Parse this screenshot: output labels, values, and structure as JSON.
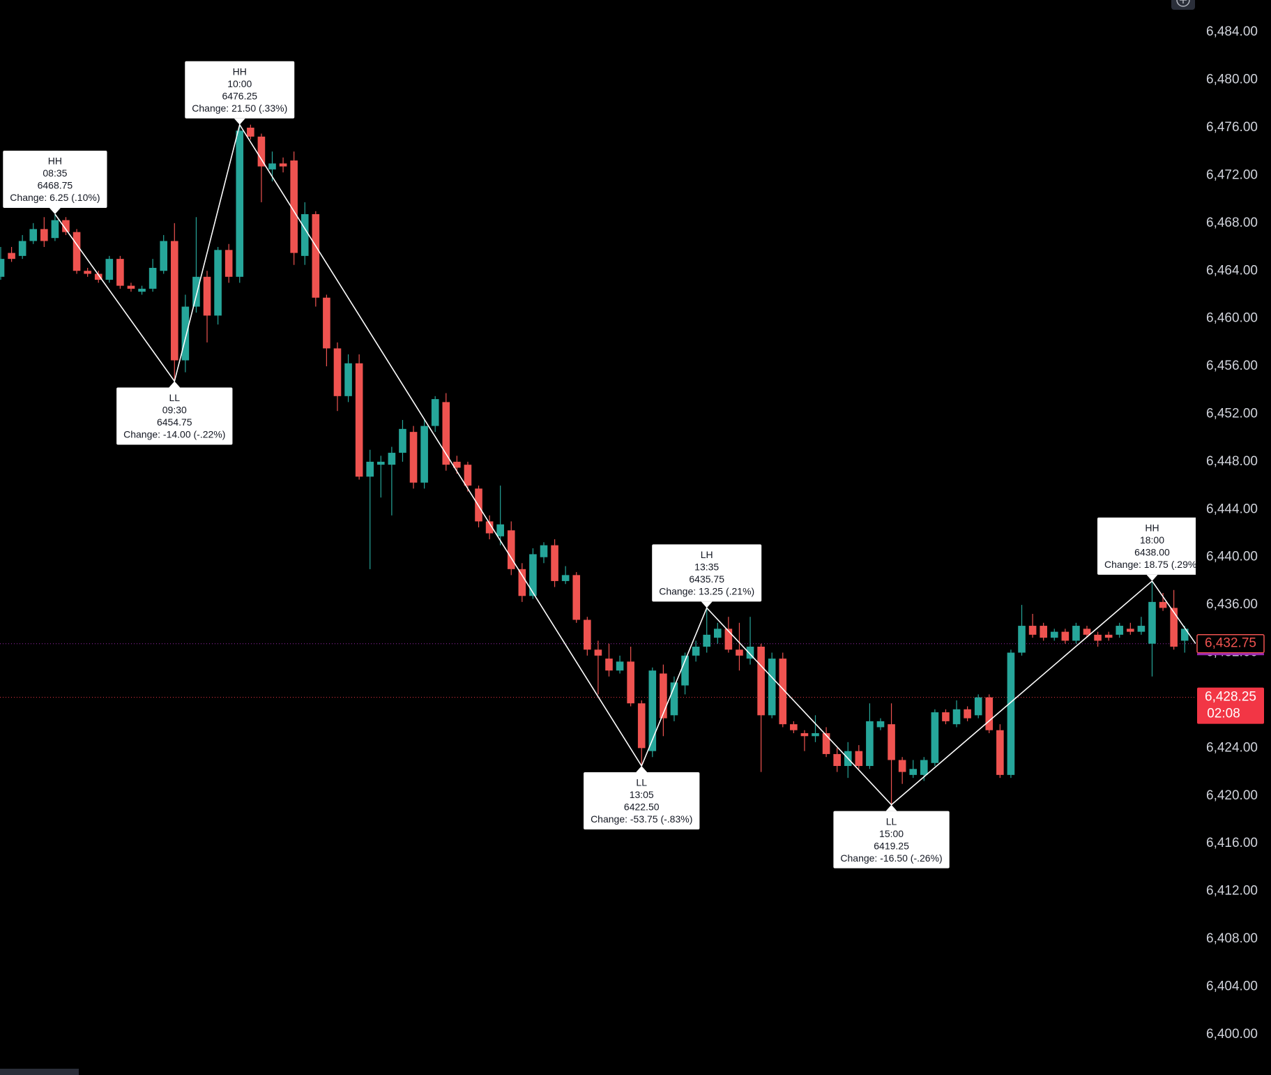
{
  "chart_data": {
    "type": "candlestick",
    "x": [
      null,
      null,
      null,
      null,
      null,
      "08:35",
      null,
      null,
      null,
      null,
      null,
      null,
      null,
      null,
      null,
      null,
      "09:30",
      null,
      null,
      null,
      null,
      null,
      "10:00",
      null,
      null,
      null,
      null,
      null,
      null,
      null,
      null,
      null,
      null,
      null,
      null,
      null,
      null,
      null,
      null,
      null,
      null,
      null,
      null,
      null,
      null,
      null,
      null,
      null,
      null,
      null,
      null,
      null,
      null,
      null,
      null,
      null,
      null,
      null,
      null,
      "13:05",
      null,
      null,
      null,
      null,
      null,
      "13:35",
      null,
      null,
      null,
      null,
      null,
      null,
      null,
      null,
      null,
      null,
      null,
      null,
      null,
      null,
      null,
      null,
      "15:00",
      null,
      null,
      null,
      null,
      null,
      null,
      null,
      null,
      null,
      null,
      null,
      null,
      null,
      null,
      null,
      null,
      null,
      null,
      null,
      null,
      null,
      null,
      null,
      "18:00",
      null,
      null,
      null
    ],
    "open": [
      6463.5,
      6465.5,
      6465.25,
      6466.5,
      6467.5,
      6466.75,
      6468.25,
      6467.25,
      6464,
      6463.75,
      6463.25,
      6465,
      6462.75,
      6462.25,
      6462.5,
      6464,
      6466.5,
      6456.5,
      6461,
      6463.5,
      6460.25,
      6465.75,
      6463.5,
      6476,
      6475.25,
      6472.5,
      6473,
      6473.25,
      6465.25,
      6468.75,
      6461.75,
      6457.5,
      6453.5,
      6456.25,
      6446.75,
      6447.75,
      6447.75,
      6448.75,
      6450.5,
      6446.25,
      6451,
      6453,
      6448,
      6447.75,
      6445.75,
      6443,
      6441.75,
      6442.25,
      6439,
      6436.75,
      6440,
      6441,
      6438,
      6438.5,
      6434.75,
      6432.25,
      6431.5,
      6430.5,
      6431.25,
      6427.75,
      6423.75,
      6430.25,
      6426.75,
      6429.25,
      6431.75,
      6432.5,
      6433.25,
      6434,
      6432.25,
      6431.5,
      6432.5,
      6426.75,
      6431.5,
      6426,
      6425.25,
      6425,
      6425.25,
      6423.5,
      6422.5,
      6423.75,
      6422.5,
      6425.75,
      6426,
      6423,
      6421.75,
      6421.75,
      6422.75,
      6427,
      6426,
      6427.25,
      6426.75,
      6428.25,
      6425.5,
      6421.75,
      6432,
      6434.25,
      6434.25,
      6433.25,
      6433.75,
      6433,
      6434,
      6433.5,
      6433.5,
      6433.5,
      6434,
      6433.75,
      6432.75,
      6436.25,
      6435.75,
      6433
    ],
    "high": [
      6466,
      6466,
      6467,
      6468,
      6468.5,
      6468.75,
      6468.5,
      6467.5,
      6464.25,
      6464,
      6465.25,
      6465.25,
      6463,
      6462.75,
      6465,
      6467,
      6468,
      6462,
      6468.5,
      6464,
      6466,
      6466.25,
      6476.25,
      6476.25,
      6475.5,
      6474,
      6473.5,
      6474,
      6469.75,
      6469,
      6462,
      6458,
      6457,
      6457,
      6449,
      6448.5,
      6449.25,
      6451.5,
      6451,
      6451.5,
      6453.5,
      6453.75,
      6448.5,
      6448,
      6446,
      6443.5,
      6446,
      6443,
      6439.5,
      6440.75,
      6441.25,
      6441.5,
      6439.25,
      6438.75,
      6435,
      6433,
      6432.75,
      6431.75,
      6432.5,
      6428,
      6430.75,
      6431,
      6430,
      6432,
      6433,
      6435.75,
      6434.5,
      6435,
      6434.5,
      6435,
      6432.75,
      6432,
      6432,
      6426.25,
      6425.5,
      6426.75,
      6425.75,
      6424,
      6424.5,
      6424.25,
      6427.75,
      6426.5,
      6427.75,
      6423.25,
      6423,
      6423.25,
      6427.25,
      6427.25,
      6428,
      6427.5,
      6428.5,
      6428.5,
      6426,
      6432.25,
      6436,
      6435.25,
      6434.5,
      6434,
      6434,
      6434.5,
      6434.25,
      6433.75,
      6433.75,
      6434.5,
      6434.5,
      6435,
      6438,
      6437,
      6437.25,
      6434.25
    ],
    "low": [
      6463.25,
      6464.75,
      6465,
      6466.25,
      6466,
      6466.5,
      6467,
      6463.75,
      6463.5,
      6463,
      6463,
      6462.5,
      6462.25,
      6462,
      6462.25,
      6463.75,
      6454.75,
      6455.5,
      6460.5,
      6458,
      6459.5,
      6463,
      6463,
      6475,
      6469.75,
      6471.5,
      6472.25,
      6464.5,
      6464.5,
      6461,
      6456,
      6452.25,
      6453,
      6446.5,
      6439,
      6445,
      6443.5,
      6448,
      6445.75,
      6445.75,
      6450.5,
      6447.25,
      6447,
      6445.5,
      6442.5,
      6441.5,
      6441,
      6438.5,
      6436.25,
      6436.5,
      6439.5,
      6437.5,
      6437.75,
      6434.5,
      6431.75,
      6428.5,
      6430,
      6430.25,
      6427.5,
      6422.5,
      6423.25,
      6425,
      6426.25,
      6428.5,
      6431.25,
      6432,
      6432.75,
      6432,
      6430.5,
      6431,
      6422,
      6426.5,
      6425.75,
      6425.25,
      6423.75,
      6424.5,
      6423.25,
      6422,
      6421.5,
      6422.25,
      6422.25,
      6425.5,
      6419.25,
      6421,
      6421.5,
      6421.25,
      6422.5,
      6426,
      6425.75,
      6426.25,
      6426.5,
      6425.25,
      6421.5,
      6421.5,
      6431.75,
      6433.25,
      6433,
      6433,
      6432.75,
      6432.75,
      6433.25,
      6432.5,
      6433,
      6433.25,
      6433.5,
      6433.5,
      6430,
      6435.5,
      6432.25,
      6432
    ],
    "close": [
      6465,
      6465,
      6466.5,
      6467.5,
      6466.5,
      6468.25,
      6467.25,
      6464,
      6463.75,
      6463.25,
      6465,
      6462.75,
      6462.5,
      6462.5,
      6464.25,
      6466.5,
      6456.5,
      6461,
      6463.5,
      6460.25,
      6465.75,
      6463.5,
      6475.75,
      6475.25,
      6472.75,
      6473,
      6472.75,
      6465.5,
      6468.75,
      6461.75,
      6457.5,
      6453.5,
      6456.25,
      6446.75,
      6448,
      6448,
      6448.75,
      6450.75,
      6446.25,
      6451,
      6453.25,
      6447.75,
      6447.5,
      6446,
      6443,
      6442,
      6442.75,
      6439,
      6436.75,
      6440.25,
      6441,
      6438,
      6438.5,
      6434.75,
      6432.25,
      6431.75,
      6430.5,
      6431.25,
      6427.75,
      6424,
      6430.5,
      6426.5,
      6429.5,
      6431.75,
      6432.5,
      6433.5,
      6434,
      6432.25,
      6431.75,
      6432.5,
      6426.75,
      6431.5,
      6426,
      6425.5,
      6425,
      6425.25,
      6423.5,
      6422.5,
      6423.75,
      6422.5,
      6426.25,
      6426.25,
      6423,
      6422,
      6422.25,
      6423,
      6427,
      6426.25,
      6427.25,
      6426.5,
      6428.25,
      6425.5,
      6421.75,
      6432,
      6434.25,
      6433.5,
      6433.25,
      6433.75,
      6433,
      6434.25,
      6433.5,
      6433,
      6433.25,
      6434.25,
      6433.75,
      6434.25,
      6436.25,
      6435.75,
      6432.5,
      6434
    ],
    "up_color": "#26a69a",
    "down_color": "#ef5350",
    "ylim": [
      6396.6,
      6486.7
    ],
    "yticks": [
      {
        "value": 6484,
        "label": "6,484.00"
      },
      {
        "value": 6480,
        "label": "6,480.00"
      },
      {
        "value": 6476,
        "label": "6,476.00"
      },
      {
        "value": 6472,
        "label": "6,472.00"
      },
      {
        "value": 6468,
        "label": "6,468.00"
      },
      {
        "value": 6464,
        "label": "6,464.00"
      },
      {
        "value": 6460,
        "label": "6,460.00"
      },
      {
        "value": 6456,
        "label": "6,456.00"
      },
      {
        "value": 6452,
        "label": "6,452.00"
      },
      {
        "value": 6448,
        "label": "6,448.00"
      },
      {
        "value": 6444,
        "label": "6,444.00"
      },
      {
        "value": 6440,
        "label": "6,440.00"
      },
      {
        "value": 6436,
        "label": "6,436.00"
      },
      {
        "value": 6432,
        "label": "6,432.00"
      },
      {
        "value": 6428,
        "label": "6,428.00"
      },
      {
        "value": 6424,
        "label": "6,424.00"
      },
      {
        "value": 6420,
        "label": "6,420.00"
      },
      {
        "value": 6416,
        "label": "6,416.00"
      },
      {
        "value": 6412,
        "label": "6,412.00"
      },
      {
        "value": 6408,
        "label": "6,408.00"
      },
      {
        "value": 6404,
        "label": "6,404.00"
      },
      {
        "value": 6400,
        "label": "6,400.00"
      }
    ],
    "pivots": [
      {
        "kind": "HH",
        "price": {
          "value": 6468.75,
          "label": "6468.75"
        },
        "change": "Change: 6.25 (.10%)"
      },
      {
        "kind": "LL",
        "price": {
          "value": 6454.75,
          "label": "6454.75"
        },
        "change": "Change: -14.00 (-.22%)"
      },
      {
        "kind": "HH",
        "price": {
          "value": 6476.25,
          "label": "6476.25"
        },
        "change": "Change: 21.50 (.33%)"
      },
      {
        "kind": "LL",
        "price": {
          "value": 6422.5,
          "label": "6422.50"
        },
        "change": "Change: -53.75 (-.83%)"
      },
      {
        "kind": "LH",
        "price": {
          "value": 6435.75,
          "label": "6435.75"
        },
        "change": "Change: 13.25 (.21%)"
      },
      {
        "kind": "LL",
        "price": {
          "value": 6419.25,
          "label": "6419.25"
        },
        "change": "Change: -16.50 (-.26%)"
      },
      {
        "kind": "HH",
        "price": {
          "value": 6438,
          "label": "6438.00"
        },
        "change": "Change: 18.75 (.29%)"
      }
    ],
    "price_lines": [
      {
        "value": 6432.75,
        "label": "6,432.75",
        "color": "#9c27b0"
      },
      {
        "value": 6428.25,
        "label": "6,428.25",
        "countdown": "02:08",
        "color": "#f23645"
      }
    ]
  }
}
